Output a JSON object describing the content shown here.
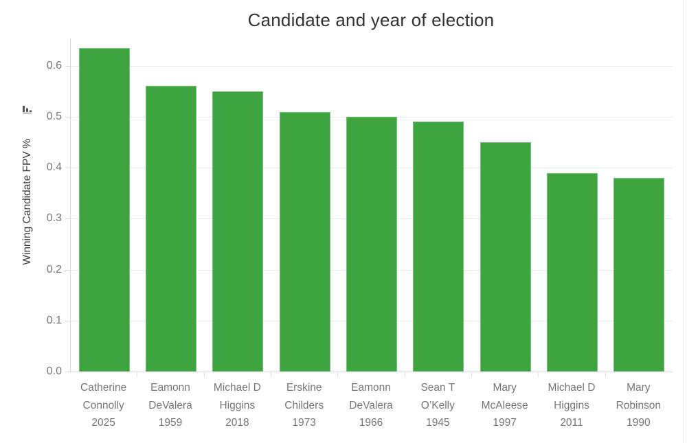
{
  "header": {
    "title": "Candidate and year of election"
  },
  "y_axis": {
    "label": "Winning Candidate FPV %",
    "sort_icon": "sort-descending-bars-icon",
    "tick_labels": [
      "0.0",
      "0.1",
      "0.2",
      "0.3",
      "0.4",
      "0.5",
      "0.6"
    ]
  },
  "colors": {
    "bar": "#3EA43F",
    "gridline": "#e9e9e9",
    "axis_line": "#d9d9d9",
    "tick_text": "#767676",
    "title_text": "#333333"
  },
  "chart_data": {
    "type": "bar",
    "title": "Candidate and year of election",
    "xlabel": "",
    "ylabel": "Winning Candidate FPV %",
    "categories": [
      "Catherine Connolly 2025",
      "Eamonn DeValera 1959",
      "Michael D Higgins 2018",
      "Erskine Childers 1973",
      "Eamonn DeValera 1966",
      "Sean T O’Kelly 1945",
      "Mary McAleese 1997",
      "Michael D Higgins 2011",
      "Mary Robinson 1990"
    ],
    "category_lines": [
      [
        "Catherine",
        "Connolly",
        "2025"
      ],
      [
        "Eamonn",
        "DeValera",
        "1959"
      ],
      [
        "Michael D",
        "Higgins",
        "2018"
      ],
      [
        "Erskine",
        "Childers",
        "1973"
      ],
      [
        "Eamonn",
        "DeValera",
        "1966"
      ],
      [
        "Sean T",
        "O’Kelly",
        "1945"
      ],
      [
        "Mary",
        "McAleese",
        "1997"
      ],
      [
        "Michael D",
        "Higgins",
        "2011"
      ],
      [
        "Mary",
        "Robinson",
        "1990"
      ]
    ],
    "values": [
      0.635,
      0.56,
      0.55,
      0.51,
      0.5,
      0.49,
      0.45,
      0.39,
      0.38
    ],
    "yticks": [
      0.0,
      0.1,
      0.2,
      0.3,
      0.4,
      0.5,
      0.6
    ],
    "ytick_labels": [
      "0.0",
      "0.1",
      "0.2",
      "0.3",
      "0.4",
      "0.5",
      "0.6"
    ],
    "ylim": [
      0,
      0.65
    ],
    "grid": true,
    "legend_position": "none",
    "sorted": "descending"
  }
}
